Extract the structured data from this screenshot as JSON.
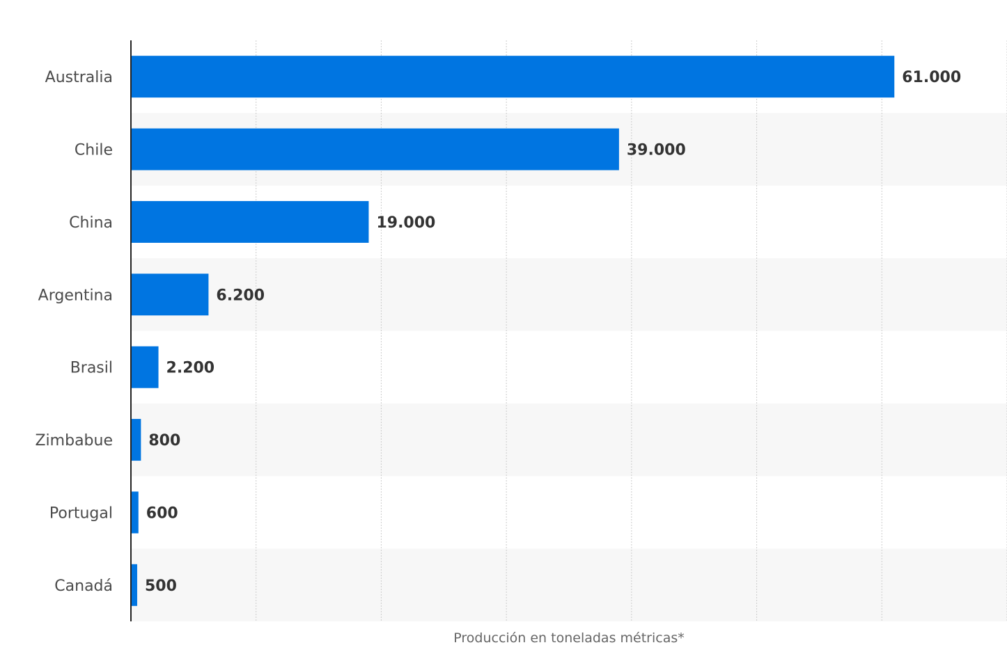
{
  "chart_data": {
    "type": "bar",
    "orientation": "horizontal",
    "categories": [
      "Australia",
      "Chile",
      "China",
      "Argentina",
      "Brasil",
      "Zimbabue",
      "Portugal",
      "Canadá"
    ],
    "values": [
      61000,
      39000,
      19000,
      6200,
      2200,
      800,
      600,
      500
    ],
    "value_labels": [
      "61.000",
      "39.000",
      "19.000",
      "6.200",
      "2.200",
      "800",
      "600",
      "500"
    ],
    "xlabel": "Producción en toneladas métricas*",
    "xlim": [
      0,
      70000
    ],
    "grid": true,
    "bar_color": "#0075e1",
    "band_color": "#f7f7f7",
    "grid_color": "#cccccc"
  }
}
